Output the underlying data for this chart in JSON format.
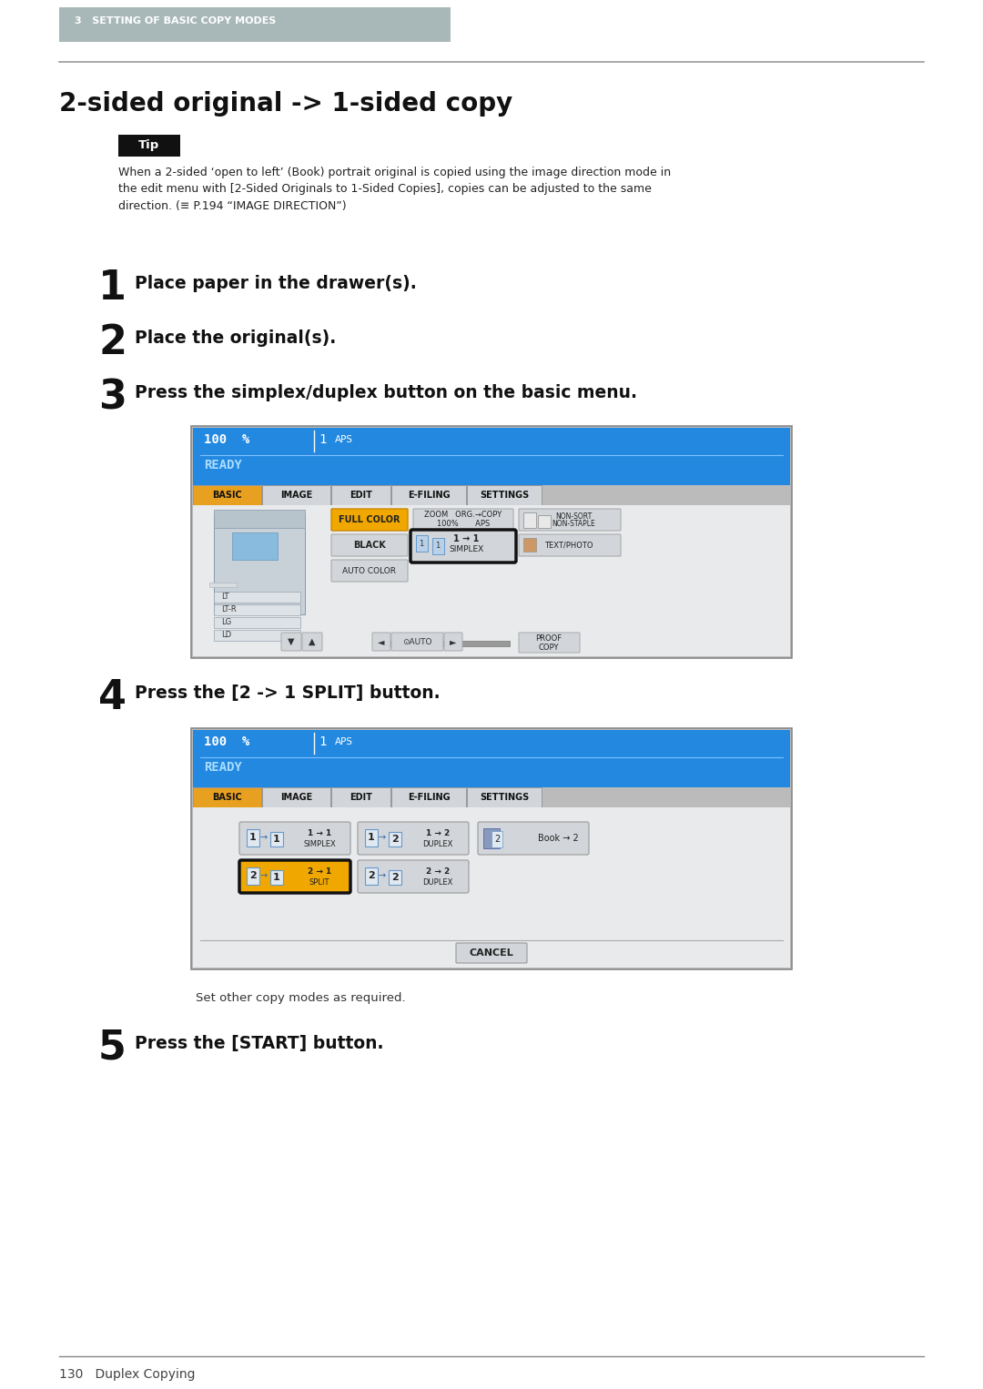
{
  "page_bg": "#ffffff",
  "header_bg": "#a8b8b8",
  "header_text": "3   SETTING OF BASIC COPY MODES",
  "header_text_color": "#ffffff",
  "title": "2-sided original -> 1-sided copy",
  "tip_bg": "#1a1a1a",
  "tip_text": "Tip",
  "tip_body": "When a 2-sided ‘open to left’ (Book) portrait original is copied using the image direction mode in\nthe edit menu with [2-Sided Originals to 1-Sided Copies], copies can be adjusted to the same\ndirection. (≡ P.194 “IMAGE DIRECTION”)",
  "step1_num": "1",
  "step1_text": "Place paper in the drawer(s).",
  "step2_num": "2",
  "step2_text": "Place the original(s).",
  "step3_num": "3",
  "step3_text": "Press the simplex/duplex button on the basic menu.",
  "step4_num": "4",
  "step4_text": "Press the [2 -> 1 SPLIT] button.",
  "step4_note": "Set other copy modes as required.",
  "step5_num": "5",
  "step5_text": "Press the [START] button.",
  "footer_text": "130   Duplex Copying",
  "screen_blue": "#2288e0",
  "screen_tab_orange": "#e8a020",
  "screen_btn_gray": "#c8ccd0",
  "screen_btn_orange": "#f0a800"
}
